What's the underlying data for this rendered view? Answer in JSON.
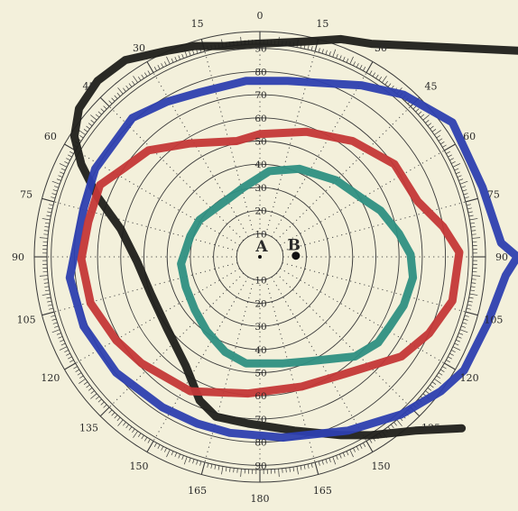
{
  "chart_data": {
    "type": "polar",
    "rings": [
      10,
      20,
      30,
      40,
      50,
      60,
      70,
      80,
      90
    ],
    "ring_labels": {
      "up": [
        "10",
        "20",
        "30",
        "40",
        "50",
        "60",
        "70",
        "80",
        "90"
      ],
      "down": [
        "10",
        "20",
        "30",
        "40",
        "50",
        "60",
        "70",
        "80",
        "90"
      ]
    },
    "angle_labels": [
      {
        "angle": 0,
        "text": "0"
      },
      {
        "angle": 15,
        "text": "15"
      },
      {
        "angle": 30,
        "text": "30"
      },
      {
        "angle": 45,
        "text": "45"
      },
      {
        "angle": 60,
        "text": "60"
      },
      {
        "angle": 75,
        "text": "75"
      },
      {
        "angle": 90,
        "text": "90"
      },
      {
        "angle": 105,
        "text": "105"
      },
      {
        "angle": 120,
        "text": "120"
      },
      {
        "angle": 135,
        "text": "135"
      },
      {
        "angle": 150,
        "text": "150"
      },
      {
        "angle": 165,
        "text": "165"
      },
      {
        "angle": 180,
        "text": "180"
      },
      {
        "angle": 195,
        "text": "165"
      },
      {
        "angle": 210,
        "text": "150"
      },
      {
        "angle": 225,
        "text": "135"
      },
      {
        "angle": 240,
        "text": "120"
      },
      {
        "angle": 255,
        "text": "105"
      },
      {
        "angle": 270,
        "text": "90"
      },
      {
        "angle": 285,
        "text": "75"
      },
      {
        "angle": 300,
        "text": "60"
      },
      {
        "angle": 315,
        "text": "45"
      },
      {
        "angle": 330,
        "text": "30"
      },
      {
        "angle": 345,
        "text": "15"
      }
    ],
    "points": [
      {
        "name": "A",
        "x": 0,
        "y": 0
      },
      {
        "name": "B",
        "x": 15.5,
        "y": 0.5
      }
    ],
    "curves": [
      {
        "color": "#1f1f1b",
        "closed": false,
        "points": [
          [
            133,
            88
          ],
          [
            48,
            92
          ],
          [
            35,
            94
          ],
          [
            20,
            93
          ],
          [
            -2,
            92
          ],
          [
            -15,
            91
          ],
          [
            -28,
            91
          ],
          [
            -40,
            89
          ],
          [
            -58,
            85
          ],
          [
            -70,
            76
          ],
          [
            -78,
            64
          ],
          [
            -80,
            52
          ],
          [
            -77,
            40
          ],
          [
            -70,
            26
          ],
          [
            -60,
            12
          ],
          [
            -53,
            -2
          ],
          [
            -47,
            -16
          ],
          [
            -40,
            -31
          ],
          [
            -32,
            -47
          ],
          [
            -26,
            -62
          ],
          [
            -19,
            -69
          ],
          [
            -5,
            -72
          ],
          [
            15,
            -75
          ],
          [
            35,
            -77
          ],
          [
            48,
            -77
          ],
          [
            67,
            -75
          ],
          [
            87,
            -74
          ]
        ]
      },
      {
        "color": "#2d3fb0",
        "closed": true,
        "points": [
          [
            -26,
            71
          ],
          [
            -6,
            76
          ],
          [
            12,
            76
          ],
          [
            44,
            74
          ],
          [
            62,
            70
          ],
          [
            83,
            58
          ],
          [
            96,
            30
          ],
          [
            104,
            6
          ],
          [
            111,
            0
          ],
          [
            106,
            -8
          ],
          [
            98,
            -29
          ],
          [
            88,
            -49
          ],
          [
            78,
            -58
          ],
          [
            61,
            -68
          ],
          [
            38,
            -75
          ],
          [
            10,
            -78
          ],
          [
            -13,
            -76
          ],
          [
            -27,
            -72
          ],
          [
            -42,
            -65
          ],
          [
            -62,
            -50
          ],
          [
            -76,
            -30
          ],
          [
            -82,
            -9
          ],
          [
            -76,
            21
          ],
          [
            -71,
            38
          ],
          [
            -63,
            49
          ],
          [
            -55,
            60
          ],
          [
            -40,
            67
          ]
        ]
      },
      {
        "color": "#c43737",
        "closed": true,
        "points": [
          [
            -10,
            50
          ],
          [
            0,
            53
          ],
          [
            20,
            54
          ],
          [
            40,
            50
          ],
          [
            58,
            40
          ],
          [
            68,
            24
          ],
          [
            79,
            13
          ],
          [
            86,
            2
          ],
          [
            83,
            -19
          ],
          [
            73,
            -33
          ],
          [
            61,
            -43
          ],
          [
            35,
            -51
          ],
          [
            18,
            -56
          ],
          [
            -5,
            -59
          ],
          [
            -30,
            -58
          ],
          [
            -51,
            -46
          ],
          [
            -62,
            -36
          ],
          [
            -73,
            -20
          ],
          [
            -77,
            -1
          ],
          [
            -74,
            15
          ],
          [
            -69,
            31
          ],
          [
            -59,
            38
          ],
          [
            -48,
            46
          ],
          [
            -30,
            49
          ]
        ]
      },
      {
        "color": "#2e8f82",
        "closed": true,
        "points": [
          [
            4,
            37
          ],
          [
            17,
            38
          ],
          [
            33,
            33
          ],
          [
            43,
            26
          ],
          [
            52,
            20
          ],
          [
            60,
            10
          ],
          [
            65,
            1
          ],
          [
            66,
            -9
          ],
          [
            62,
            -21
          ],
          [
            56,
            -30
          ],
          [
            51,
            -37
          ],
          [
            41,
            -43
          ],
          [
            22,
            -45
          ],
          [
            10,
            -46
          ],
          [
            -6,
            -46
          ],
          [
            -15,
            -41
          ],
          [
            -23,
            -32
          ],
          [
            -28,
            -23
          ],
          [
            -32,
            -13
          ],
          [
            -34,
            -3
          ],
          [
            -30,
            9
          ],
          [
            -26,
            16
          ],
          [
            -15,
            24
          ],
          [
            -7,
            30
          ]
        ]
      }
    ]
  }
}
